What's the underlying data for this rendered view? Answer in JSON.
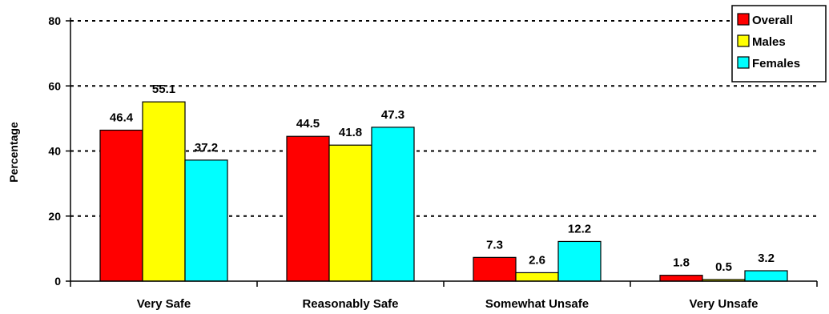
{
  "chart_data": {
    "type": "bar",
    "title": "",
    "xlabel": "",
    "ylabel": "Percentage",
    "ylim": [
      0,
      80
    ],
    "yticks": [
      0,
      20,
      40,
      60,
      80
    ],
    "grid": "horizontal-dashed",
    "legend_position": "top-right",
    "categories": [
      "Very Safe",
      "Reasonably Safe",
      "Somewhat Unsafe",
      "Very Unsafe"
    ],
    "series": [
      {
        "name": "Overall",
        "color": "#ff0000",
        "values": [
          46.4,
          44.5,
          7.3,
          1.8
        ]
      },
      {
        "name": "Males",
        "color": "#ffff00",
        "values": [
          55.1,
          41.8,
          2.6,
          0.5
        ]
      },
      {
        "name": "Females",
        "color": "#00ffff",
        "values": [
          37.2,
          47.3,
          12.2,
          3.2
        ]
      }
    ]
  }
}
